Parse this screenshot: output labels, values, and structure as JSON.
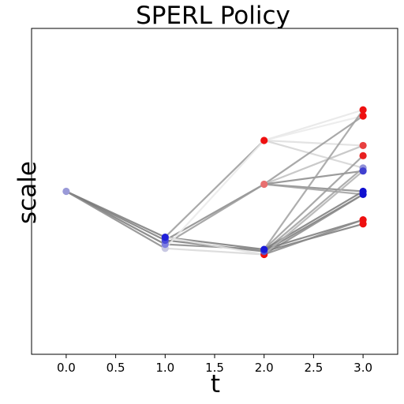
{
  "chart_data": {
    "type": "line",
    "title": "SPERL Policy",
    "xlabel": "t",
    "ylabel": "scale",
    "xlim": [
      -0.35,
      3.35
    ],
    "ylim": [
      -1.6,
      1.6
    ],
    "x_ticks": [
      "0.0",
      "0.5",
      "1.0",
      "1.5",
      "2.0",
      "2.5",
      "3.0"
    ],
    "y_ticks_shown": false,
    "grid": false,
    "point_color_scale": [
      "blue",
      "red"
    ],
    "points": [
      {
        "x": 0,
        "y": 0.0,
        "color": "#9a9ad8"
      },
      {
        "x": 1,
        "y": -0.56,
        "color": "#c8c8e2"
      },
      {
        "x": 1,
        "y": -0.52,
        "color": "#7f7fe0"
      },
      {
        "x": 1,
        "y": -0.48,
        "color": "#4a4ad8"
      },
      {
        "x": 1,
        "y": -0.45,
        "color": "#2020d8"
      },
      {
        "x": 2,
        "y": -0.62,
        "color": "#ee1010"
      },
      {
        "x": 2,
        "y": -0.59,
        "color": "#5050d0"
      },
      {
        "x": 2,
        "y": -0.57,
        "color": "#1818d8"
      },
      {
        "x": 2,
        "y": 0.07,
        "color": "#e87070"
      },
      {
        "x": 2,
        "y": 0.5,
        "color": "#ee1010"
      },
      {
        "x": 3,
        "y": 0.8,
        "color": "#ee1010"
      },
      {
        "x": 3,
        "y": 0.74,
        "color": "#ee1010"
      },
      {
        "x": 3,
        "y": 0.45,
        "color": "#e84040"
      },
      {
        "x": 3,
        "y": 0.35,
        "color": "#e82020"
      },
      {
        "x": 3,
        "y": 0.23,
        "color": "#9090d8"
      },
      {
        "x": 3,
        "y": 0.2,
        "color": "#4040d0"
      },
      {
        "x": 3,
        "y": 0.0,
        "color": "#1010d0"
      },
      {
        "x": 3,
        "y": -0.03,
        "color": "#1010d0"
      },
      {
        "x": 3,
        "y": -0.28,
        "color": "#ee1010"
      },
      {
        "x": 3,
        "y": -0.32,
        "color": "#ee1010"
      }
    ],
    "segments": [
      {
        "x1": 0,
        "y1": 0.0,
        "x2": 1,
        "y2": -0.45,
        "shade": "#7a7a7a"
      },
      {
        "x1": 0,
        "y1": 0.0,
        "x2": 1,
        "y2": -0.48,
        "shade": "#7a7a7a"
      },
      {
        "x1": 0,
        "y1": 0.0,
        "x2": 1,
        "y2": -0.52,
        "shade": "#7a7a7a"
      },
      {
        "x1": 0,
        "y1": 0.0,
        "x2": 1,
        "y2": -0.56,
        "shade": "#8a8a8a"
      },
      {
        "x1": 1,
        "y1": -0.45,
        "x2": 2,
        "y2": 0.5,
        "shade": "#9a9a9a"
      },
      {
        "x1": 1,
        "y1": -0.48,
        "x2": 2,
        "y2": 0.07,
        "shade": "#8a8a8a"
      },
      {
        "x1": 1,
        "y1": -0.52,
        "x2": 2,
        "y2": 0.07,
        "shade": "#9a9a9a"
      },
      {
        "x1": 1,
        "y1": -0.45,
        "x2": 2,
        "y2": -0.57,
        "shade": "#7a7a7a"
      },
      {
        "x1": 1,
        "y1": -0.48,
        "x2": 2,
        "y2": -0.59,
        "shade": "#7a7a7a"
      },
      {
        "x1": 1,
        "y1": -0.52,
        "x2": 2,
        "y2": -0.57,
        "shade": "#888888"
      },
      {
        "x1": 1,
        "y1": -0.56,
        "x2": 2,
        "y2": -0.62,
        "shade": "#d8d8d8"
      },
      {
        "x1": 1,
        "y1": -0.45,
        "x2": 2,
        "y2": -0.62,
        "shade": "#e2e2e2"
      },
      {
        "x1": 1,
        "y1": -0.56,
        "x2": 2,
        "y2": 0.5,
        "shade": "#eaeaea"
      },
      {
        "x1": 2,
        "y1": 0.5,
        "x2": 3,
        "y2": 0.8,
        "shade": "#e6e6e6"
      },
      {
        "x1": 2,
        "y1": 0.5,
        "x2": 3,
        "y2": 0.74,
        "shade": "#eaeaea"
      },
      {
        "x1": 2,
        "y1": 0.5,
        "x2": 3,
        "y2": 0.45,
        "shade": "#dedede"
      },
      {
        "x1": 2,
        "y1": 0.5,
        "x2": 3,
        "y2": 0.23,
        "shade": "#d4d4d4"
      },
      {
        "x1": 2,
        "y1": 0.07,
        "x2": 3,
        "y2": 0.74,
        "shade": "#9a9a9a"
      },
      {
        "x1": 2,
        "y1": 0.07,
        "x2": 3,
        "y2": 0.45,
        "shade": "#c0c0c0"
      },
      {
        "x1": 2,
        "y1": 0.07,
        "x2": 3,
        "y2": 0.2,
        "shade": "#8a8a8a"
      },
      {
        "x1": 2,
        "y1": 0.07,
        "x2": 3,
        "y2": 0.0,
        "shade": "#8a8a8a"
      },
      {
        "x1": 2,
        "y1": 0.07,
        "x2": 3,
        "y2": -0.03,
        "shade": "#a0a0a0"
      },
      {
        "x1": 2,
        "y1": -0.57,
        "x2": 3,
        "y2": 0.8,
        "shade": "#a0a0a0"
      },
      {
        "x1": 2,
        "y1": -0.57,
        "x2": 3,
        "y2": 0.35,
        "shade": "#9a9a9a"
      },
      {
        "x1": 2,
        "y1": -0.59,
        "x2": 3,
        "y2": 0.23,
        "shade": "#a0a0a0"
      },
      {
        "x1": 2,
        "y1": -0.57,
        "x2": 3,
        "y2": 0.0,
        "shade": "#7a7a7a"
      },
      {
        "x1": 2,
        "y1": -0.59,
        "x2": 3,
        "y2": -0.03,
        "shade": "#7a7a7a"
      },
      {
        "x1": 2,
        "y1": -0.62,
        "x2": 3,
        "y2": -0.03,
        "shade": "#8a8a8a"
      },
      {
        "x1": 2,
        "y1": -0.57,
        "x2": 3,
        "y2": -0.28,
        "shade": "#7a7a7a"
      },
      {
        "x1": 2,
        "y1": -0.59,
        "x2": 3,
        "y2": -0.32,
        "shade": "#7a7a7a"
      },
      {
        "x1": 2,
        "y1": -0.62,
        "x2": 3,
        "y2": -0.28,
        "shade": "#8a8a8a"
      },
      {
        "x1": 2,
        "y1": -0.62,
        "x2": 3,
        "y2": 0.2,
        "shade": "#b0b0b0"
      }
    ]
  }
}
